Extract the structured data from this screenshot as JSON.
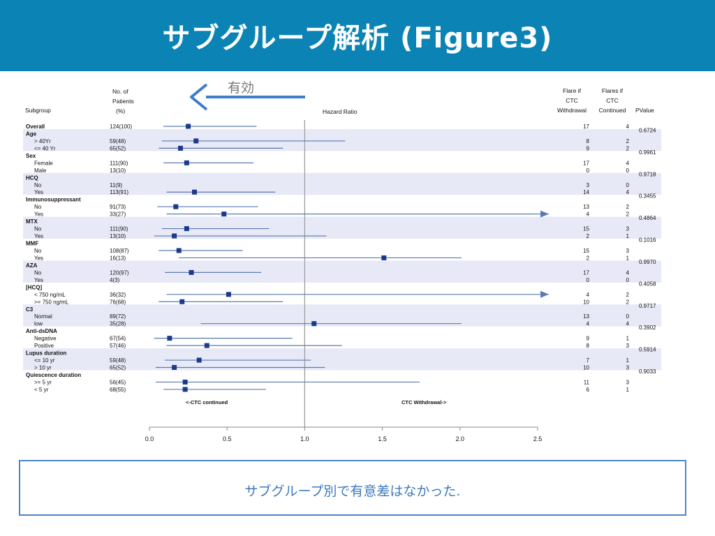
{
  "slide": {
    "title": "サブグループ解析 (Figure3)",
    "note": "サブグループ別で有意差はなかった."
  },
  "colors": {
    "header_bg": "#0b84b5",
    "band": "#e7e9f7",
    "marker": "#1a3a8c",
    "ci_line": "#5a7ab2",
    "arrow": "#3f7dc6",
    "note_border": "#4a86c6"
  },
  "chart_data": {
    "type": "forest",
    "title": "",
    "xlabel": "Hazard Ratio",
    "xlim": [
      0.0,
      2.5
    ],
    "xticks": [
      "0.0",
      "0.5",
      "1.0",
      "1.5",
      "2.0",
      "2.5"
    ],
    "reference_line": 1.0,
    "annotation": "有効",
    "direction_left": "<-CTC continued",
    "direction_right": "CTC Withdrawal->",
    "headers": {
      "subgroup": "Subgroup",
      "patients": [
        "No. of",
        "Patients",
        "(%)"
      ],
      "flare_withdrawal": [
        "Flare if",
        "CTC",
        "Withdrawal"
      ],
      "flare_continued": [
        "Flares if",
        "CTC",
        "Continued"
      ],
      "pvalue": "PValue"
    },
    "rows": [
      {
        "label": "Overall",
        "level": 0,
        "n": "124(100)",
        "hr": 0.25,
        "lo": 0.09,
        "hi": 0.69,
        "f_w": "17",
        "f_c": "4"
      },
      {
        "label": "Age",
        "level": 0,
        "p": "0.6724"
      },
      {
        "label": "> 40Yr",
        "level": 1,
        "n": "59(48)",
        "hr": 0.3,
        "lo": 0.08,
        "hi": 1.26,
        "f_w": "8",
        "f_c": "2"
      },
      {
        "label": "<= 40 Yr",
        "level": 1,
        "n": "65(52)",
        "hr": 0.2,
        "lo": 0.06,
        "hi": 0.86,
        "f_w": "9",
        "f_c": "2"
      },
      {
        "label": "Sex",
        "level": 0,
        "p": "0.9961"
      },
      {
        "label": "Female",
        "level": 1,
        "n": "111(90)",
        "hr": 0.24,
        "lo": 0.09,
        "hi": 0.67,
        "f_w": "17",
        "f_c": "4"
      },
      {
        "label": "Male",
        "level": 1,
        "n": "13(10)",
        "f_w": "0",
        "f_c": "0"
      },
      {
        "label": "HCQ",
        "level": 0,
        "p": "0.9718"
      },
      {
        "label": "No",
        "level": 1,
        "n": "11(9)",
        "f_w": "3",
        "f_c": "0"
      },
      {
        "label": "Yes",
        "level": 1,
        "n": "113(91)",
        "hr": 0.29,
        "lo": 0.11,
        "hi": 0.81,
        "f_w": "14",
        "f_c": "4"
      },
      {
        "label": "Immunosuppressant",
        "level": 0,
        "p": "0.3455"
      },
      {
        "label": "No",
        "level": 1,
        "n": "91(73)",
        "hr": 0.17,
        "lo": 0.05,
        "hi": 0.7,
        "f_w": "13",
        "f_c": "2"
      },
      {
        "label": "Yes",
        "level": 1,
        "n": "33(27)",
        "hr": 0.48,
        "lo": 0.11,
        "hi": 2.5,
        "arrow": true,
        "f_w": "4",
        "f_c": "2"
      },
      {
        "label": "MTX",
        "level": 0,
        "p": "0.4864"
      },
      {
        "label": "No",
        "level": 1,
        "n": "111(90)",
        "hr": 0.24,
        "lo": 0.08,
        "hi": 0.77,
        "f_w": "15",
        "f_c": "3"
      },
      {
        "label": "Yes",
        "level": 1,
        "n": "13(10)",
        "hr": 0.16,
        "lo": 0.03,
        "hi": 1.14,
        "f_w": "2",
        "f_c": "1"
      },
      {
        "label": "MMF",
        "level": 0,
        "p": "0.1016"
      },
      {
        "label": "No",
        "level": 1,
        "n": "108(87)",
        "hr": 0.19,
        "lo": 0.06,
        "hi": 0.6,
        "f_w": "15",
        "f_c": "3"
      },
      {
        "label": "Yes",
        "level": 1,
        "n": "16(13)",
        "hr": 1.51,
        "lo": 0.19,
        "hi": 2.01,
        "f_w": "2",
        "f_c": "1"
      },
      {
        "label": "AZA",
        "level": 0,
        "p": "0.9970"
      },
      {
        "label": "No",
        "level": 1,
        "n": "120(97)",
        "hr": 0.27,
        "lo": 0.1,
        "hi": 0.72,
        "f_w": "17",
        "f_c": "4"
      },
      {
        "label": "Yes",
        "level": 1,
        "n": "4(3)",
        "f_w": "0",
        "f_c": "0"
      },
      {
        "label": "[HCQ]",
        "level": 0,
        "p": "0.4058"
      },
      {
        "label": "< 750 ng/mL",
        "level": 1,
        "n": "36(32)",
        "hr": 0.51,
        "lo": 0.11,
        "hi": 2.5,
        "arrow": true,
        "f_w": "4",
        "f_c": "2"
      },
      {
        "label": ">= 750 ng/mL",
        "level": 1,
        "n": "76(68)",
        "hr": 0.21,
        "lo": 0.06,
        "hi": 0.86,
        "f_w": "10",
        "f_c": "2"
      },
      {
        "label": "C3",
        "level": 0,
        "p": "0.9717"
      },
      {
        "label": "Normal",
        "level": 1,
        "n": "89(72)",
        "f_w": "13",
        "f_c": "0"
      },
      {
        "label": "low",
        "level": 1,
        "n": "35(28)",
        "hr": 1.06,
        "lo": 0.33,
        "hi": 2.01,
        "f_w": "4",
        "f_c": "4"
      },
      {
        "label": "Anti-dsDNA",
        "level": 0,
        "p": "0.3902"
      },
      {
        "label": "Negative",
        "level": 1,
        "n": "67(54)",
        "hr": 0.13,
        "lo": 0.03,
        "hi": 0.92,
        "f_w": "9",
        "f_c": "1"
      },
      {
        "label": "Positive",
        "level": 1,
        "n": "57(46)",
        "hr": 0.37,
        "lo": 0.11,
        "hi": 1.24,
        "f_w": "8",
        "f_c": "3"
      },
      {
        "label": "Lupus duration",
        "level": 0,
        "p": "0.5914"
      },
      {
        "label": "<= 10 yr",
        "level": 1,
        "n": "59(48)",
        "hr": 0.32,
        "lo": 0.1,
        "hi": 1.04,
        "f_w": "7",
        "f_c": "1"
      },
      {
        "label": "> 10 yr",
        "level": 1,
        "n": "65(52)",
        "hr": 0.16,
        "lo": 0.04,
        "hi": 1.13,
        "f_w": "10",
        "f_c": "3"
      },
      {
        "label": "Quiescence duration",
        "level": 0,
        "p": "0.9033"
      },
      {
        "label": ">= 5 yr",
        "level": 1,
        "n": "56(45)",
        "hr": 0.23,
        "lo": 0.04,
        "hi": 1.74,
        "f_w": "11",
        "f_c": "3"
      },
      {
        "label": "< 5 yr",
        "level": 1,
        "n": "68(55)",
        "hr": 0.23,
        "lo": 0.09,
        "hi": 0.75,
        "f_w": "6",
        "f_c": "1"
      }
    ]
  }
}
